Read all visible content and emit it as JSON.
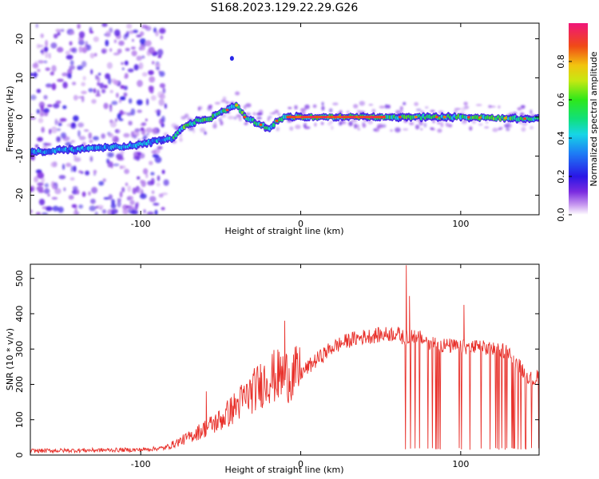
{
  "title": "S168.2023.129.22.29.G26",
  "chart_data": [
    {
      "type": "heatmap",
      "xlabel": "Height of straight line (km)",
      "ylabel": "Frequency (Hz)",
      "xlim": [
        -169,
        149
      ],
      "ylim": [
        -25,
        24
      ],
      "x_ticks": [
        -100,
        0,
        100
      ],
      "y_ticks": [
        -20,
        -10,
        0,
        10,
        20
      ],
      "colorbar": {
        "label": "Normalized spectral amplitude",
        "range": [
          0,
          1
        ],
        "ticks": [
          "0.0",
          "0.2",
          "0.4",
          "0.6",
          "0.8"
        ],
        "colormap": "rainbow (violet → blue → cyan → green → yellow → red → magenta)"
      },
      "ridge": {
        "x": [
          -169,
          -150,
          -130,
          -110,
          -100,
          -90,
          -80,
          -75,
          -70,
          -65,
          -60,
          -55,
          -50,
          -45,
          -40,
          -35,
          -30,
          -25,
          -20,
          -15,
          -10,
          -5,
          0,
          50,
          100,
          149
        ],
        "frequency": [
          -9,
          -8.5,
          -8,
          -7.5,
          -7,
          -6,
          -5.5,
          -3,
          -2,
          -1,
          -1,
          0,
          1,
          2,
          3,
          0,
          -1,
          -2,
          -3,
          -1,
          0,
          0,
          0,
          0,
          0,
          -0.5
        ]
      }
    },
    {
      "type": "line",
      "xlabel": "Height of straight line (km)",
      "ylabel": "SNR (10 * v/v)",
      "xlim": [
        -169,
        149
      ],
      "ylim": [
        0,
        540
      ],
      "x_ticks": [
        -100,
        0,
        100
      ],
      "y_ticks": [
        0,
        100,
        200,
        300,
        400,
        500
      ],
      "line_color": "#e8302a",
      "envelope": {
        "x": [
          -169,
          -100,
          -85,
          -80,
          -70,
          -60,
          -50,
          -40,
          -30,
          -20,
          -10,
          0,
          10,
          20,
          30,
          40,
          50,
          60,
          65,
          70,
          80,
          90,
          100,
          110,
          120,
          130,
          133,
          140,
          145,
          149
        ],
        "snr": [
          12,
          15,
          20,
          30,
          50,
          75,
          100,
          140,
          180,
          220,
          225,
          230,
          270,
          305,
          325,
          335,
          340,
          345,
          330,
          340,
          320,
          310,
          305,
          305,
          300,
          295,
          270,
          235,
          210,
          225
        ]
      },
      "spikes": [
        {
          "x": -59,
          "snr": 180
        },
        {
          "x": -10,
          "snr": 380
        },
        {
          "x": 66,
          "snr": 537
        },
        {
          "x": 68,
          "snr": 450
        },
        {
          "x": 102,
          "snr": 425
        }
      ],
      "dropouts_x_range": [
        65,
        149
      ],
      "dropout_level": 15
    }
  ]
}
